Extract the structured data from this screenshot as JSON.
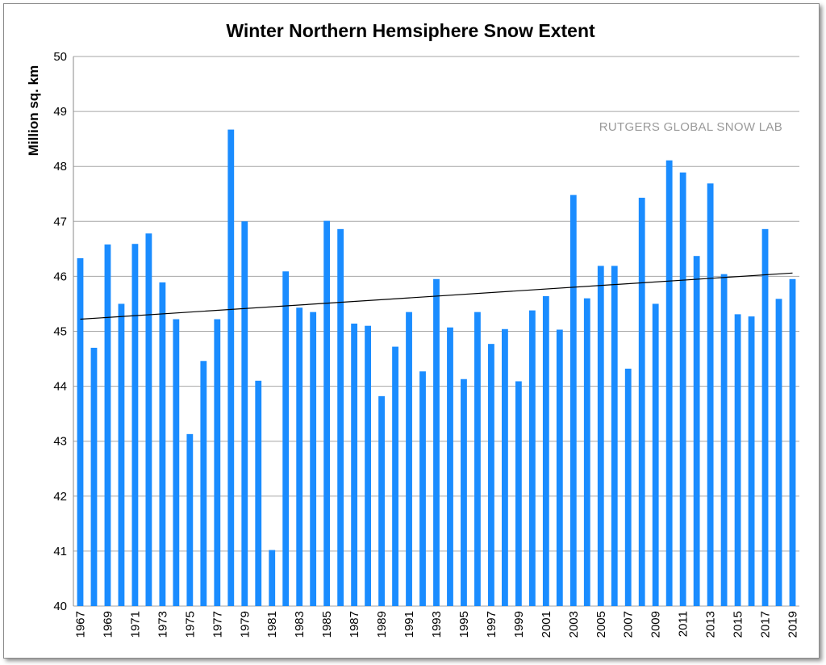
{
  "chart_data": {
    "type": "bar",
    "title": "Winter Northern Hemsiphere Snow Extent",
    "ylabel": "Million sq. km",
    "xlabel": "",
    "watermark": "RUTGERS GLOBAL SNOW LAB",
    "ylim": [
      40,
      50
    ],
    "yticks": [
      40,
      41,
      42,
      43,
      44,
      45,
      46,
      47,
      48,
      49,
      50
    ],
    "x_tick_labels": [
      "1967",
      "1969",
      "1971",
      "1973",
      "1975",
      "1977",
      "1979",
      "1981",
      "1983",
      "1985",
      "1987",
      "1989",
      "1991",
      "1993",
      "1995",
      "1997",
      "1999",
      "2001",
      "2003",
      "2005",
      "2007",
      "2009",
      "2011",
      "2013",
      "2015",
      "2017",
      "2019"
    ],
    "grid": true,
    "bar_color": "#1a8cff",
    "trendline": {
      "color": "#000000",
      "start": [
        1967,
        45.22
      ],
      "end": [
        2019,
        46.06
      ]
    },
    "categories": [
      1967,
      1968,
      1969,
      1970,
      1971,
      1972,
      1973,
      1974,
      1975,
      1976,
      1977,
      1978,
      1979,
      1980,
      1981,
      1982,
      1983,
      1984,
      1985,
      1986,
      1987,
      1988,
      1989,
      1990,
      1991,
      1992,
      1993,
      1994,
      1995,
      1996,
      1997,
      1998,
      1999,
      2000,
      2001,
      2002,
      2003,
      2004,
      2005,
      2006,
      2007,
      2008,
      2009,
      2010,
      2011,
      2012,
      2013,
      2014,
      2015,
      2016,
      2017,
      2018,
      2019
    ],
    "values": [
      46.33,
      44.7,
      46.58,
      45.5,
      46.59,
      46.78,
      45.89,
      45.22,
      43.13,
      44.46,
      45.22,
      48.67,
      47.0,
      44.1,
      41.02,
      46.09,
      45.43,
      45.35,
      47.01,
      46.86,
      45.14,
      45.1,
      43.82,
      44.72,
      45.35,
      44.27,
      45.95,
      45.07,
      44.13,
      45.35,
      44.77,
      45.04,
      44.09,
      45.38,
      45.64,
      45.03,
      47.48,
      45.6,
      46.19,
      46.19,
      44.32,
      47.43,
      45.5,
      48.11,
      47.89,
      46.37,
      47.69,
      46.04,
      45.31,
      45.27,
      46.86,
      45.59,
      45.95
    ]
  }
}
